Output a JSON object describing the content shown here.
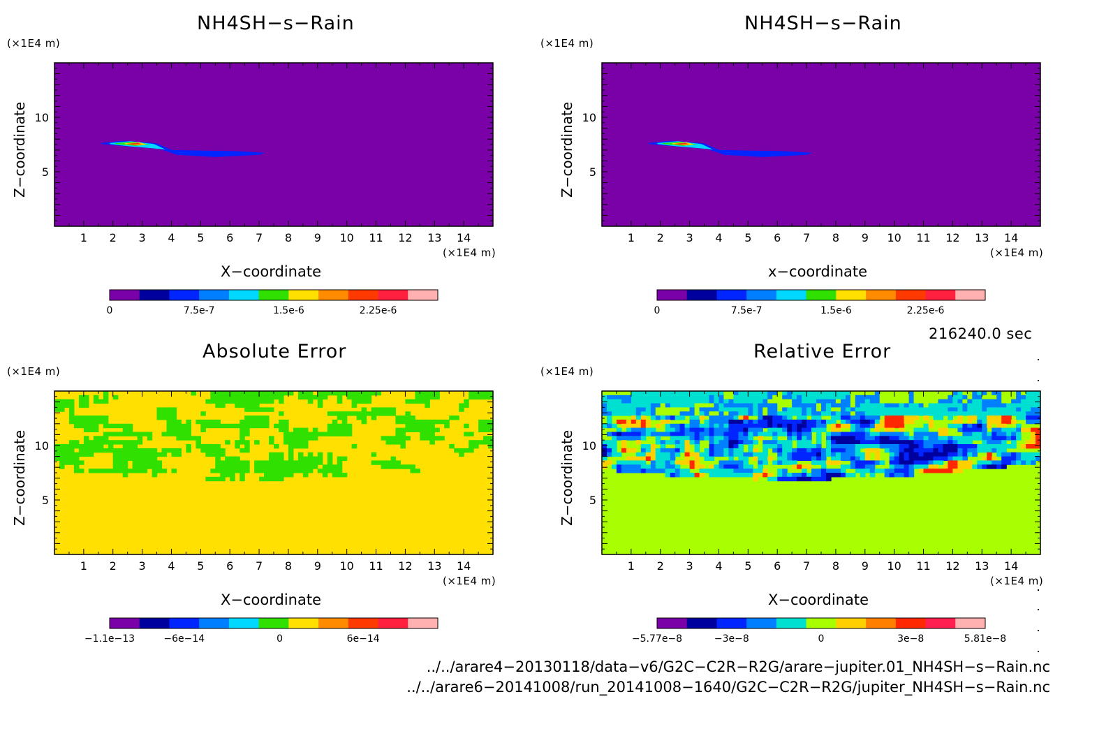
{
  "chart_data": [
    {
      "type": "heatmap",
      "title": "NH4SH−s−Rain",
      "xlabel": "X−coordinate",
      "ylabel": "Z−coordinate",
      "x_unit": "(×1E4 m)",
      "y_unit": "(×1E4 m)",
      "xlim": [
        0,
        15
      ],
      "ylim": [
        0,
        15
      ],
      "x_ticks": [
        1,
        2,
        3,
        4,
        5,
        6,
        7,
        8,
        9,
        10,
        11,
        12,
        13,
        14
      ],
      "y_ticks": [
        5,
        10
      ],
      "field": "plume",
      "colorbar": {
        "colors": [
          "#7a00a8",
          "#00009e",
          "#0025ff",
          "#0080ff",
          "#00d8ff",
          "#30e000",
          "#ffe000",
          "#ff8c00",
          "#ff3a00",
          "#ff2040",
          "#ffb0b0"
        ],
        "labels": [
          "0",
          "7.5e-7",
          "1.5e-6",
          "2.25e-6"
        ],
        "label_positions": [
          0,
          3,
          6,
          9
        ]
      }
    },
    {
      "type": "heatmap",
      "title": "NH4SH−s−Rain",
      "xlabel": "x−coordinate",
      "ylabel": "Z−coordinate",
      "x_unit": "(×1E4 m)",
      "y_unit": "(×1E4 m)",
      "xlim": [
        0,
        15
      ],
      "ylim": [
        0,
        15
      ],
      "x_ticks": [
        1,
        2,
        3,
        4,
        5,
        6,
        7,
        8,
        9,
        10,
        11,
        12,
        13,
        14
      ],
      "y_ticks": [
        5,
        10
      ],
      "field": "plume",
      "colorbar": {
        "colors": [
          "#7a00a8",
          "#00009e",
          "#0025ff",
          "#0080ff",
          "#00d8ff",
          "#30e000",
          "#ffe000",
          "#ff8c00",
          "#ff3a00",
          "#ff2040",
          "#ffb0b0"
        ],
        "labels": [
          "0",
          "7.5e-7",
          "1.5e-6",
          "2.25e-6"
        ],
        "label_positions": [
          0,
          3,
          6,
          9
        ]
      }
    },
    {
      "type": "heatmap",
      "title": "Absolute Error",
      "xlabel": "X−coordinate",
      "ylabel": "Z−coordinate",
      "x_unit": "(×1E4 m)",
      "y_unit": "(×1E4 m)",
      "xlim": [
        0,
        15
      ],
      "ylim": [
        0,
        15
      ],
      "x_ticks": [
        1,
        2,
        3,
        4,
        5,
        6,
        7,
        8,
        9,
        10,
        11,
        12,
        13,
        14
      ],
      "y_ticks": [
        5,
        10
      ],
      "field": "abs_noise",
      "colorbar": {
        "colors": [
          "#7a00a8",
          "#00009e",
          "#0025ff",
          "#0080ff",
          "#00d8ff",
          "#30e000",
          "#ffe000",
          "#ff8c00",
          "#ff3a00",
          "#ff2040",
          "#ffb0b0"
        ],
        "labels": [
          "−1.1e−13",
          "−6e−14",
          "0",
          "6e−14"
        ],
        "label_positions": [
          0,
          2.5,
          5.7,
          8.5
        ]
      }
    },
    {
      "type": "heatmap",
      "title": "Relative Error",
      "xlabel": "X−coordinate",
      "ylabel": "Z−coordinate",
      "x_unit": "(×1E4 m)",
      "y_unit": "(×1E4 m)",
      "xlim": [
        0,
        15
      ],
      "ylim": [
        0,
        15
      ],
      "x_ticks": [
        1,
        2,
        3,
        4,
        5,
        6,
        7,
        8,
        9,
        10,
        11,
        12,
        13,
        14
      ],
      "y_ticks": [
        5,
        10
      ],
      "field": "rel_noise",
      "colorbar": {
        "colors": [
          "#7a00a8",
          "#00009e",
          "#0025ff",
          "#0080ff",
          "#00e0d0",
          "#a8ff00",
          "#ffd000",
          "#ff8000",
          "#ff2800",
          "#ff2050",
          "#ffb0b0"
        ],
        "labels": [
          "−5.77e−8",
          "−3e−8",
          "0",
          "3e−8",
          "5.81e−8"
        ],
        "label_positions": [
          0,
          2.5,
          5.5,
          8.5,
          11
        ]
      }
    }
  ],
  "timestamp": "216240.0 sec",
  "file_paths": [
    "../../arare4−20130118/data−v6/G2C−C2R−R2G/arare−jupiter.01_NH4SH−s−Rain.nc",
    "../../arare6−20141008/run_20141008−1640/G2C−C2R−R2G/jupiter_NH4SH−s−Rain.nc"
  ]
}
